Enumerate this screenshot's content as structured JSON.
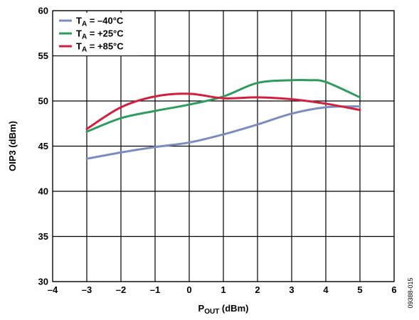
{
  "chart_data": {
    "type": "line",
    "xlabel": "P",
    "xlabel_sub": "OUT",
    "xlabel_unit": " (dBm)",
    "ylabel": "OIP3 (dBm)",
    "xlim": [
      -4,
      6
    ],
    "ylim": [
      30,
      60
    ],
    "xticks": [
      -4,
      -3,
      -2,
      -1,
      0,
      1,
      2,
      3,
      4,
      5,
      6
    ],
    "xtick_labels": [
      "–4",
      "–3",
      "–2",
      "–1",
      "0",
      "1",
      "2",
      "3",
      "4",
      "5",
      "6"
    ],
    "yticks": [
      30,
      35,
      40,
      45,
      50,
      55,
      60
    ],
    "ytick_labels": [
      "30",
      "35",
      "40",
      "45",
      "50",
      "55",
      "60"
    ],
    "grid": true,
    "legend_position": "top-left",
    "figure_id": "09388-015",
    "series": [
      {
        "name_main": "T",
        "name_sub": "A",
        "name_rest": " = –40°C",
        "color": "#7B8DBE",
        "x": [
          -3,
          -2,
          -1,
          0,
          1,
          2,
          3,
          4,
          5
        ],
        "y": [
          43.6,
          44.3,
          44.9,
          45.4,
          46.3,
          47.4,
          48.6,
          49.3,
          49.4
        ]
      },
      {
        "name_main": "T",
        "name_sub": "A",
        "name_rest": " = +25°C",
        "color": "#2E9B5F",
        "x": [
          -3,
          -2,
          -1,
          0,
          1,
          2,
          3,
          3.5,
          4,
          5
        ],
        "y": [
          46.6,
          48.1,
          48.9,
          49.6,
          50.5,
          52.0,
          52.3,
          52.3,
          52.1,
          50.4
        ]
      },
      {
        "name_main": "T",
        "name_sub": "A",
        "name_rest": " = +85°C",
        "color": "#D31F3F",
        "x": [
          -3,
          -2,
          -1,
          0,
          1,
          2,
          3,
          4,
          5
        ],
        "y": [
          46.9,
          49.3,
          50.5,
          50.8,
          50.3,
          50.4,
          50.2,
          49.7,
          49.0
        ]
      }
    ]
  }
}
